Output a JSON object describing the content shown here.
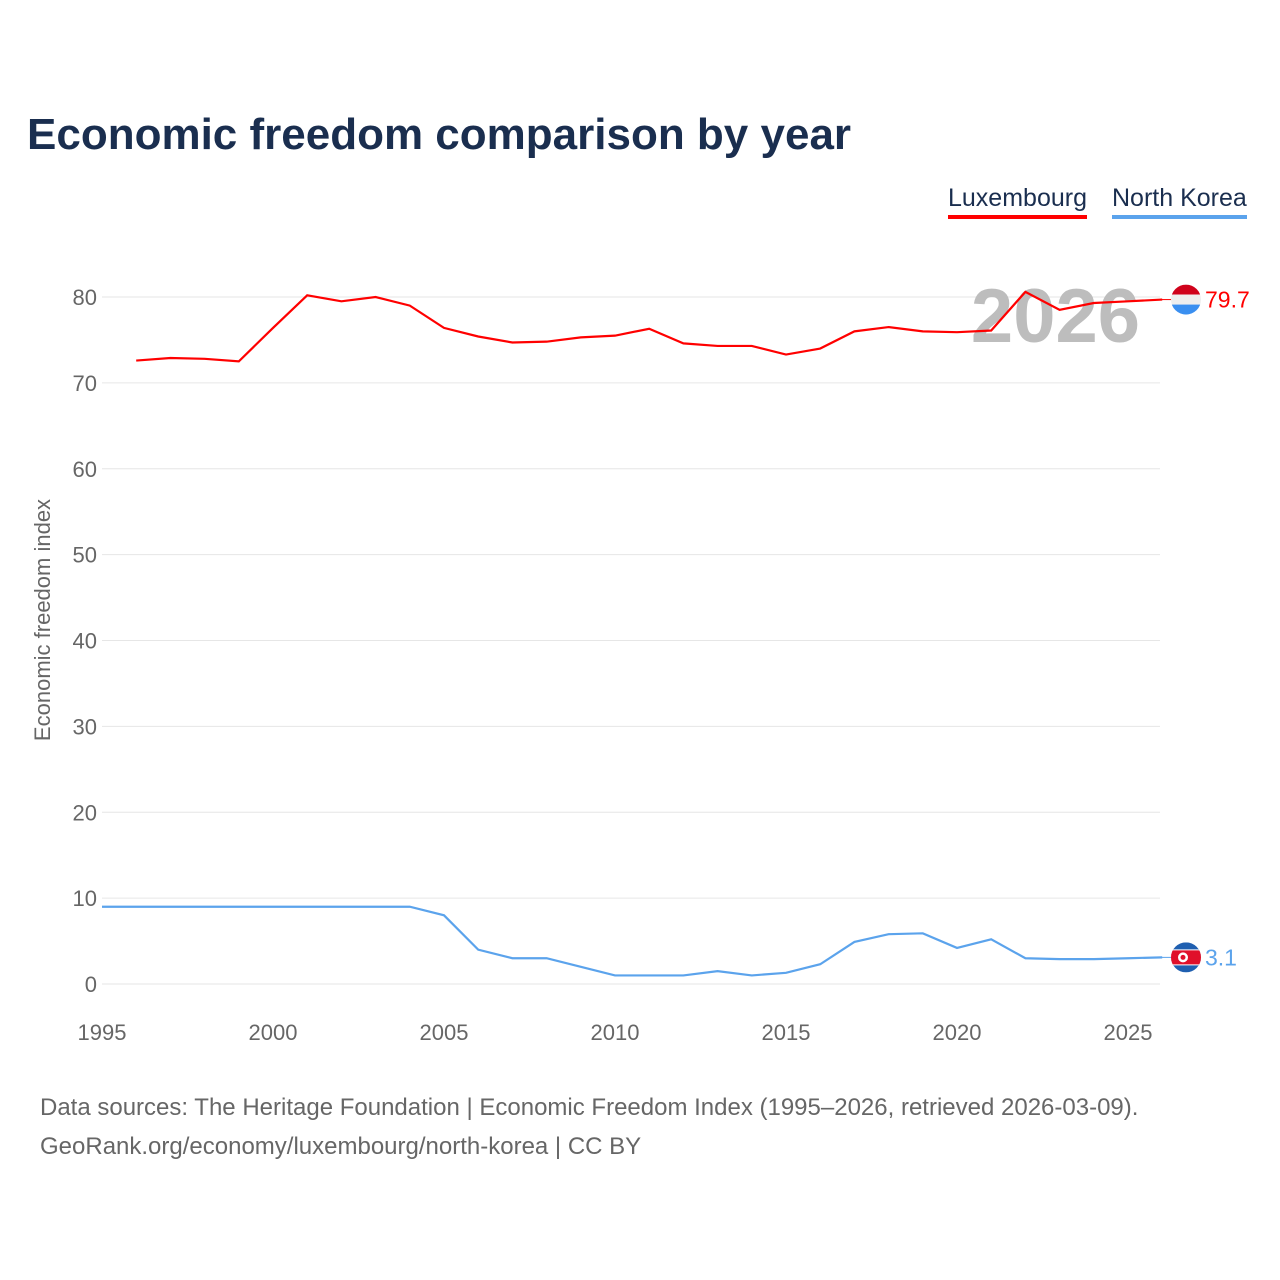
{
  "chart_data": {
    "type": "line",
    "title": "Economic freedom comparison by year",
    "xlabel": "",
    "ylabel": "Economic freedom index",
    "xlim": [
      1995,
      2026
    ],
    "ylim": [
      0,
      85
    ],
    "x_ticks": [
      1995,
      2000,
      2005,
      2010,
      2015,
      2020,
      2025
    ],
    "y_ticks": [
      0,
      10,
      20,
      30,
      40,
      50,
      60,
      70,
      80
    ],
    "grid": true,
    "legend_position": "top-right",
    "year_watermark": "2026",
    "series": [
      {
        "name": "Luxembourg",
        "color": "#ff0000",
        "end_label": "79.7",
        "x": [
          1996,
          1997,
          1998,
          1999,
          2000,
          2001,
          2002,
          2003,
          2004,
          2005,
          2006,
          2007,
          2008,
          2009,
          2010,
          2011,
          2012,
          2013,
          2014,
          2015,
          2016,
          2017,
          2018,
          2019,
          2020,
          2021,
          2022,
          2023,
          2024,
          2025,
          2026
        ],
        "values": [
          72.6,
          72.9,
          72.8,
          72.5,
          76.4,
          80.2,
          79.5,
          80.0,
          79.0,
          76.4,
          75.4,
          74.7,
          74.8,
          75.3,
          75.5,
          76.3,
          74.6,
          74.3,
          74.3,
          73.3,
          74.0,
          76.0,
          76.5,
          76.0,
          75.9,
          76.1,
          80.6,
          78.5,
          79.3,
          79.5,
          79.7
        ]
      },
      {
        "name": "North Korea",
        "color": "#5ba3ec",
        "end_label": "3.1",
        "x": [
          1995,
          1996,
          1997,
          1998,
          1999,
          2000,
          2001,
          2002,
          2003,
          2004,
          2005,
          2006,
          2007,
          2008,
          2009,
          2010,
          2011,
          2012,
          2013,
          2014,
          2015,
          2016,
          2017,
          2018,
          2019,
          2020,
          2021,
          2022,
          2023,
          2024,
          2025,
          2026
        ],
        "values": [
          9.0,
          9.0,
          9.0,
          9.0,
          9.0,
          9.0,
          9.0,
          9.0,
          9.0,
          9.0,
          8.0,
          4.0,
          3.0,
          3.0,
          2.0,
          1.0,
          1.0,
          1.0,
          1.5,
          1.0,
          1.3,
          2.3,
          4.9,
          5.8,
          5.9,
          4.2,
          5.2,
          3.0,
          2.9,
          2.9,
          3.0,
          3.1
        ]
      }
    ]
  },
  "footer": {
    "line1": "Data sources: The Heritage Foundation | Economic Freedom Index (1995–2026, retrieved 2026-03-09).",
    "line2": "GeoRank.org/economy/luxembourg/north-korea | CC BY"
  }
}
